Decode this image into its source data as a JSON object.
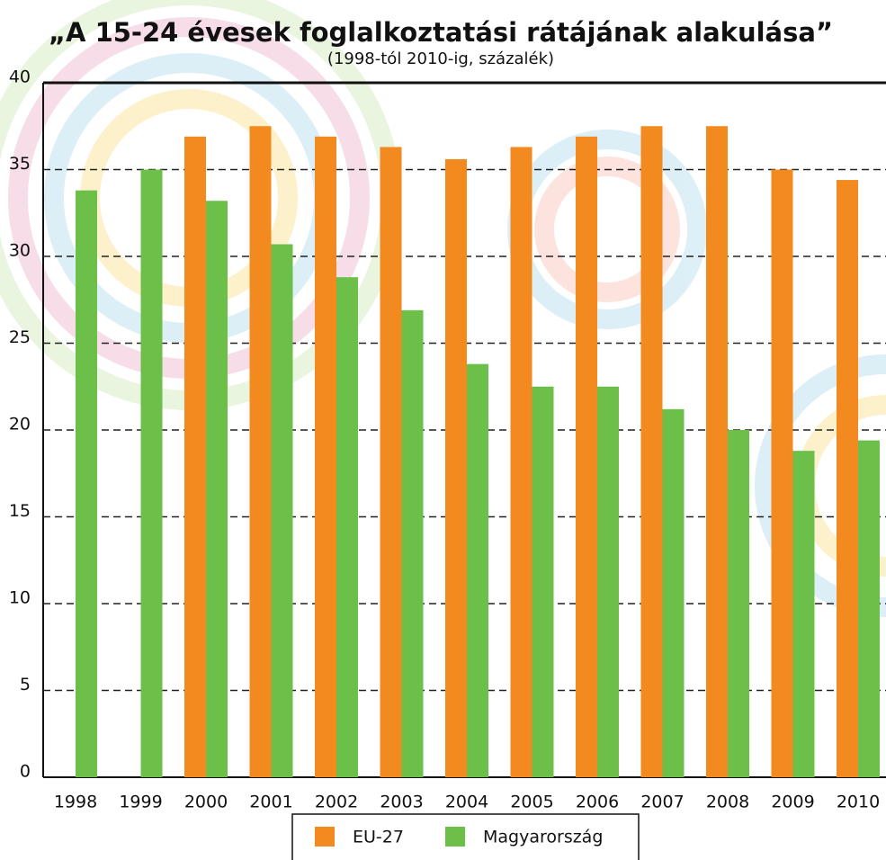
{
  "chart_data": {
    "type": "bar",
    "title": "„A 15-24 évesek foglalkoztatási rátájának alakulása”",
    "subtitle": "(1998-tól 2010-ig, százalék)",
    "categories": [
      "1998",
      "1999",
      "2000",
      "2001",
      "2002",
      "2003",
      "2004",
      "2005",
      "2006",
      "2007",
      "2008",
      "2009",
      "2010"
    ],
    "series": [
      {
        "name": "EU-27",
        "color": "#f28a1f",
        "values": [
          null,
          null,
          36.9,
          37.5,
          36.9,
          36.3,
          35.6,
          36.3,
          36.9,
          37.5,
          37.5,
          35.0,
          34.4
        ]
      },
      {
        "name": "Magyarország",
        "color": "#6cc04a",
        "values": [
          33.8,
          35.0,
          33.2,
          30.7,
          28.8,
          26.9,
          23.8,
          22.5,
          22.5,
          21.2,
          20.0,
          18.8,
          19.4
        ]
      }
    ],
    "ylim": [
      0,
      40
    ],
    "yticks": [
      0,
      5,
      10,
      15,
      20,
      25,
      30,
      35,
      40
    ],
    "grid": true
  }
}
